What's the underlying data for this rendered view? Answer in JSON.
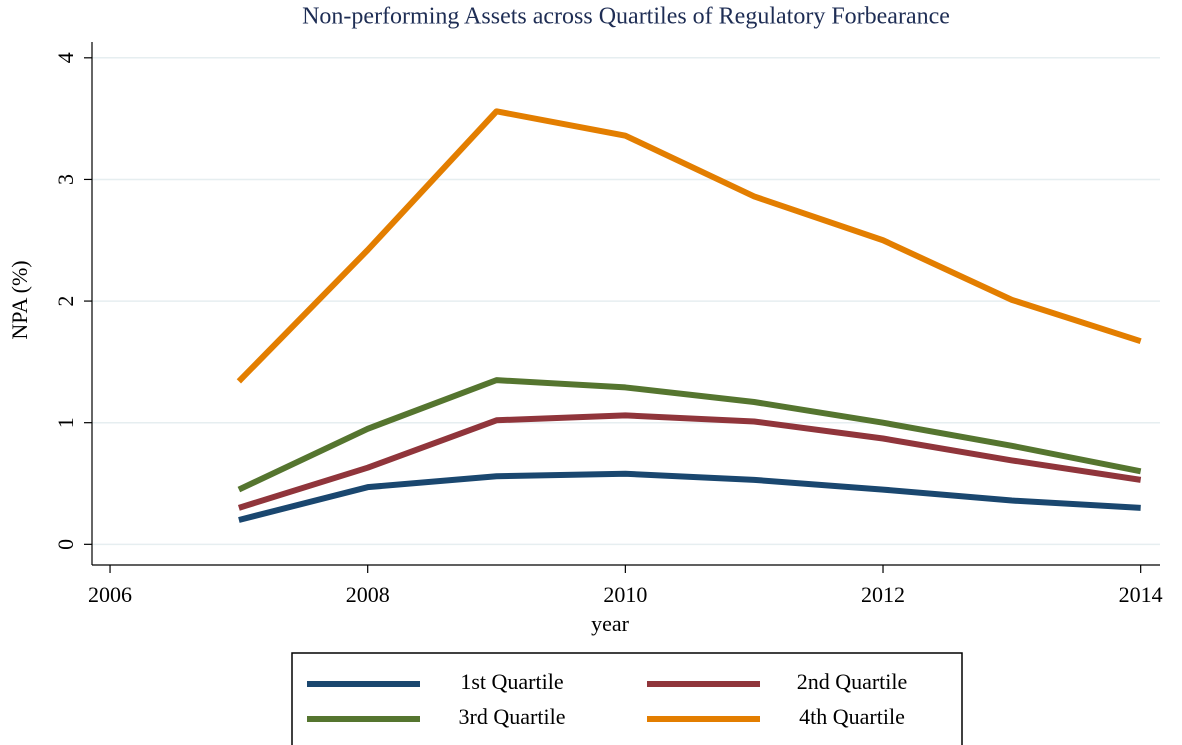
{
  "chart_data": {
    "type": "line",
    "title": "Non-performing Assets across Quartiles of Regulatory Forbearance",
    "xlabel": "year",
    "ylabel": "NPA (%)",
    "x": [
      2007,
      2008,
      2009,
      2010,
      2011,
      2012,
      2013,
      2014
    ],
    "series": [
      {
        "name": "1st Quartile",
        "color": "#1a476f",
        "values": [
          0.2,
          0.47,
          0.56,
          0.58,
          0.53,
          0.45,
          0.36,
          0.3
        ]
      },
      {
        "name": "2nd Quartile",
        "color": "#90353b",
        "values": [
          0.3,
          0.63,
          1.02,
          1.06,
          1.01,
          0.87,
          0.69,
          0.53
        ]
      },
      {
        "name": "3rd Quartile",
        "color": "#55752f",
        "values": [
          0.45,
          0.95,
          1.35,
          1.29,
          1.17,
          1.0,
          0.81,
          0.6
        ]
      },
      {
        "name": "4th Quartile",
        "color": "#e37e00",
        "values": [
          1.34,
          2.42,
          3.56,
          3.36,
          2.86,
          2.5,
          2.01,
          1.67
        ]
      }
    ],
    "xlim": [
      2005.86,
      2014.15
    ],
    "xticks": [
      2006,
      2008,
      2010,
      2012,
      2014
    ],
    "ylim": [
      -0.17,
      4.13
    ],
    "yticks": [
      0,
      1,
      2,
      3,
      4
    ],
    "grid": true,
    "legend": "bottom"
  }
}
